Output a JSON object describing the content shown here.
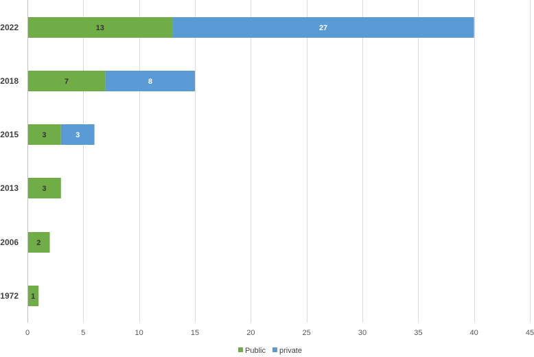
{
  "chart_data": {
    "type": "bar",
    "orientation": "horizontal",
    "stacked": true,
    "categories": [
      "2022",
      "2018",
      "2015",
      "2013",
      "2006",
      "1972"
    ],
    "series": [
      {
        "name": "Public",
        "color": "#70ad47",
        "label_color": "#333333",
        "values": [
          13,
          7,
          3,
          3,
          2,
          1
        ]
      },
      {
        "name": "private",
        "color": "#5b9bd5",
        "label_color": "#ffffff",
        "values": [
          27,
          8,
          3,
          0,
          0,
          0
        ]
      }
    ],
    "xlim": [
      0,
      45
    ],
    "xticks": [
      0,
      5,
      10,
      15,
      20,
      25,
      30,
      35,
      40,
      45
    ],
    "grid": true,
    "legend_position": "bottom-center",
    "data_labels": true,
    "title": "",
    "xlabel": "",
    "ylabel": ""
  }
}
